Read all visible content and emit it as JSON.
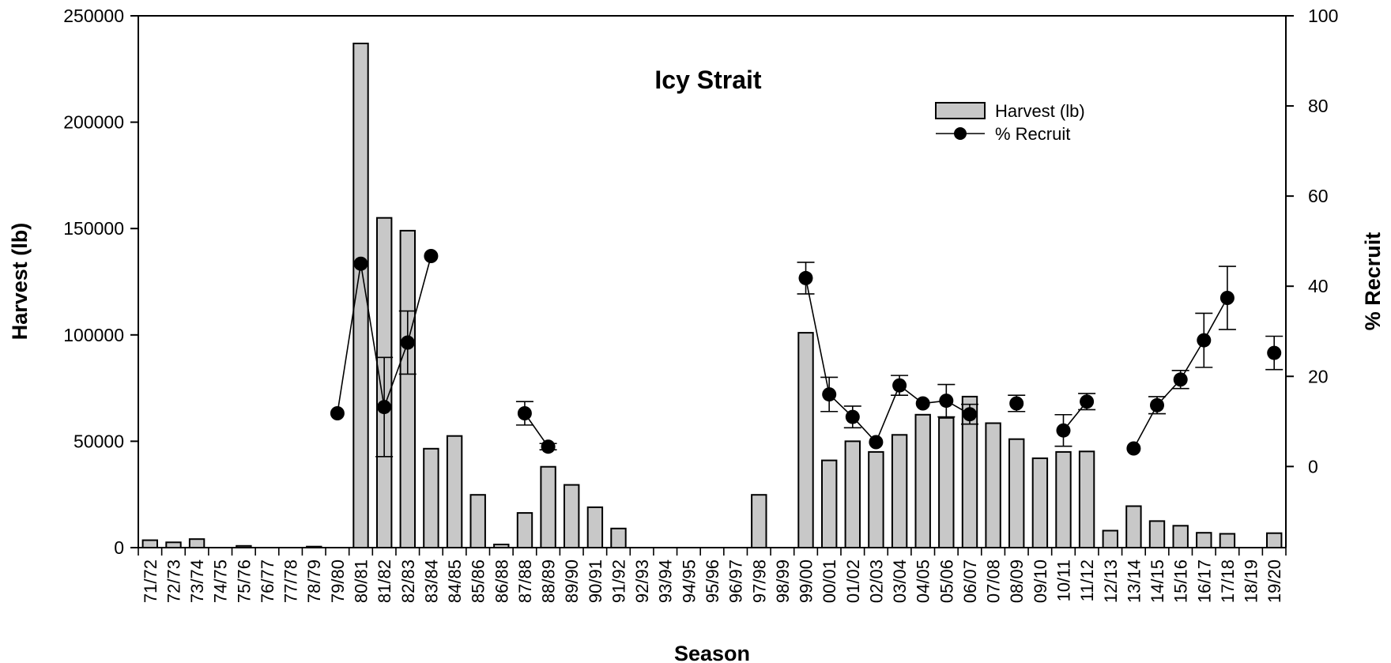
{
  "chart_data": {
    "type": "bar",
    "title": "Icy Strait",
    "xlabel": "Season",
    "ylabel": "Harvest (lb)",
    "y2label": "% Recruit",
    "categories": [
      "71/72",
      "72/73",
      "73/74",
      "74/75",
      "75/76",
      "76/77",
      "77/78",
      "78/79",
      "79/80",
      "80/81",
      "81/82",
      "82/83",
      "83/84",
      "84/85",
      "85/86",
      "86/88",
      "87/88",
      "88/89",
      "89/90",
      "90/91",
      "91/92",
      "92/93",
      "93/94",
      "94/95",
      "95/96",
      "96/97",
      "97/98",
      "98/99",
      "99/00",
      "00/01",
      "01/02",
      "02/03",
      "03/04",
      "04/05",
      "05/06",
      "06/07",
      "07/08",
      "08/09",
      "09/10",
      "10/11",
      "11/12",
      "12/13",
      "13/14",
      "14/15",
      "15/16",
      "16/17",
      "17/18",
      "18/19",
      "19/20"
    ],
    "ylim": [
      0,
      250000
    ],
    "y_ticks": [
      0,
      50000,
      100000,
      150000,
      200000,
      250000
    ],
    "y2lim": [
      -18,
      100
    ],
    "y2_ticks": [
      0,
      20,
      40,
      60,
      80,
      100
    ],
    "legend_position": "top-right",
    "colors": {
      "bar_fill": "#c8c8c8",
      "bar_stroke": "#000000",
      "line": "#000000",
      "marker": "#000000"
    },
    "series": [
      {
        "name": "Harvest (lb)",
        "type": "bar",
        "axis": "left",
        "values": [
          3500,
          2500,
          4000,
          0,
          800,
          0,
          0,
          500,
          0,
          237000,
          155000,
          149000,
          46500,
          52500,
          24800,
          1500,
          16300,
          38000,
          29500,
          19000,
          9000,
          0,
          0,
          0,
          0,
          0,
          24800,
          0,
          101000,
          41000,
          50000,
          45000,
          53000,
          62500,
          61000,
          71000,
          58500,
          51000,
          42000,
          45000,
          45200,
          8000,
          19500,
          12500,
          10300,
          7000,
          6500,
          0,
          6800
        ]
      },
      {
        "name": "% Recruit",
        "type": "line",
        "axis": "right",
        "values": [
          null,
          null,
          null,
          null,
          null,
          null,
          null,
          null,
          11.8,
          45,
          13.2,
          27.5,
          46.7,
          null,
          null,
          null,
          11.8,
          4.4,
          null,
          null,
          null,
          null,
          null,
          null,
          null,
          null,
          null,
          null,
          41.8,
          16,
          11,
          5.4,
          18,
          14,
          14.6,
          11.6,
          null,
          14,
          null,
          8,
          14.4,
          null,
          4,
          13.6,
          19.3,
          28,
          37.4,
          null,
          25.2
        ],
        "errors": [
          null,
          null,
          null,
          null,
          null,
          null,
          null,
          null,
          null,
          null,
          11,
          7,
          null,
          null,
          null,
          null,
          2.6,
          0.7,
          null,
          null,
          null,
          null,
          null,
          null,
          null,
          null,
          null,
          null,
          3.5,
          3.8,
          2.4,
          null,
          2.2,
          null,
          3.6,
          2.2,
          null,
          1.8,
          null,
          3.5,
          1.8,
          null,
          null,
          1.9,
          2,
          6,
          7,
          null,
          3.7
        ]
      }
    ]
  }
}
